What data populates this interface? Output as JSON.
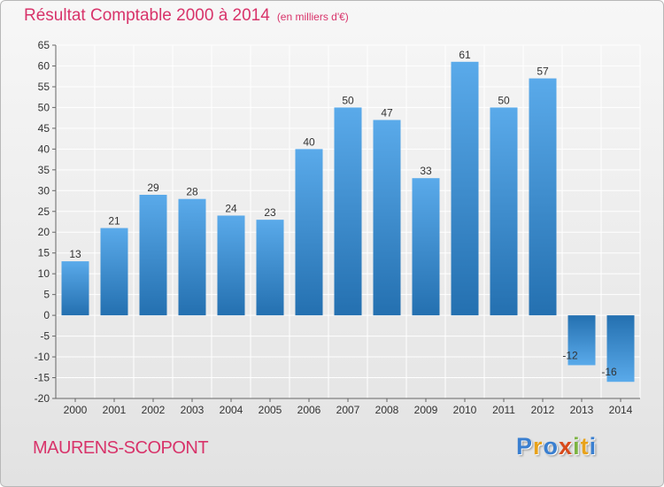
{
  "header": {
    "title": "Résultat Comptable 2000 à 2014",
    "unit": "(en milliers d'€)"
  },
  "footer": {
    "commune": "MAURENS-SCOPONT",
    "logo_text": "Proxiti",
    "logo_colors": [
      "#3a7fd0",
      "#e8a21a",
      "#3a7fd0",
      "#d84a1b",
      "#7cb341",
      "#e8a21a",
      "#3a7fd0"
    ]
  },
  "colors": {
    "title": "#d8336a",
    "bar_light": "#5aaaea",
    "bar_dark": "#2470b0",
    "grid": "#ffffff",
    "axis_text": "#333333"
  },
  "chart_data": {
    "type": "bar",
    "title": "Résultat Comptable 2000 à 2014",
    "ylabel": "en milliers d'€",
    "xlabel": "",
    "categories": [
      "2000",
      "2001",
      "2002",
      "2003",
      "2004",
      "2005",
      "2006",
      "2007",
      "2008",
      "2009",
      "2010",
      "2011",
      "2012",
      "2013",
      "2014"
    ],
    "values": [
      13,
      21,
      29,
      28,
      24,
      23,
      40,
      50,
      47,
      33,
      61,
      50,
      57,
      -12,
      -16
    ],
    "value_labels": [
      "13",
      "21",
      "29",
      "28",
      "24",
      "23",
      "40",
      "50",
      "47",
      "33",
      "61",
      "50",
      "57",
      "-12",
      "-16"
    ],
    "ylim": [
      -20,
      65
    ],
    "yticks": [
      -20,
      -15,
      -10,
      -5,
      0,
      5,
      10,
      15,
      20,
      25,
      30,
      35,
      40,
      45,
      50,
      55,
      60,
      65
    ],
    "grid": true,
    "legend": "none"
  }
}
